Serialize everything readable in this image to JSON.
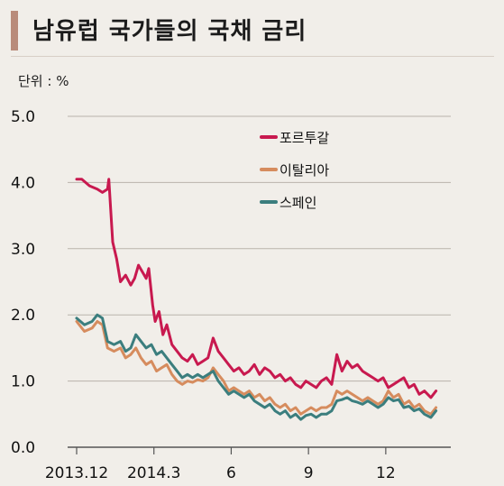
{
  "title": "남유럽 국가들의 국채 금리",
  "unit": "단위 : %",
  "chart_data": {
    "type": "line",
    "title": "남유럽 국가들의 국채 금리",
    "ylabel": "단위 : %",
    "ylim": [
      0,
      5
    ],
    "yticks": [
      "0.0",
      "1.0",
      "2.0",
      "3.0",
      "4.0",
      "5.0"
    ],
    "xticks": [
      "2013.12",
      "2014.3",
      "6",
      "9",
      "12"
    ],
    "xtick_pos": [
      0,
      3,
      6,
      9,
      12
    ],
    "xlim": [
      0,
      14
    ],
    "grid": true,
    "legend_position": "top-right",
    "series": [
      {
        "name": "포르투갈",
        "color": "#c8194f",
        "x": [
          0,
          0.2,
          0.5,
          0.8,
          1.0,
          1.2,
          1.25,
          1.4,
          1.55,
          1.7,
          1.9,
          2.1,
          2.25,
          2.4,
          2.55,
          2.7,
          2.8,
          2.95,
          3.05,
          3.2,
          3.35,
          3.5,
          3.7,
          3.9,
          4.1,
          4.3,
          4.5,
          4.7,
          4.9,
          5.1,
          5.3,
          5.5,
          5.7,
          5.9,
          6.1,
          6.3,
          6.5,
          6.7,
          6.9,
          7.1,
          7.3,
          7.5,
          7.7,
          7.9,
          8.1,
          8.3,
          8.5,
          8.7,
          8.9,
          9.1,
          9.3,
          9.5,
          9.7,
          9.9,
          10.1,
          10.3,
          10.5,
          10.7,
          10.9,
          11.1,
          11.3,
          11.5,
          11.7,
          11.9,
          12.1,
          12.3,
          12.5,
          12.7,
          12.9,
          13.1,
          13.3,
          13.5,
          13.75,
          13.95
        ],
        "values": [
          4.05,
          4.05,
          3.95,
          3.9,
          3.85,
          3.9,
          4.05,
          3.1,
          2.85,
          2.5,
          2.6,
          2.45,
          2.55,
          2.75,
          2.65,
          2.55,
          2.7,
          2.15,
          1.9,
          2.05,
          1.7,
          1.85,
          1.55,
          1.45,
          1.35,
          1.3,
          1.4,
          1.25,
          1.3,
          1.35,
          1.65,
          1.45,
          1.35,
          1.25,
          1.15,
          1.2,
          1.1,
          1.15,
          1.25,
          1.1,
          1.2,
          1.15,
          1.05,
          1.1,
          1.0,
          1.05,
          0.95,
          0.9,
          1.0,
          0.95,
          0.9,
          1.0,
          1.05,
          0.95,
          1.4,
          1.15,
          1.3,
          1.2,
          1.25,
          1.15,
          1.1,
          1.05,
          1.0,
          1.05,
          0.9,
          0.95,
          1.0,
          1.05,
          0.9,
          0.95,
          0.8,
          0.85,
          0.75,
          0.85
        ]
      },
      {
        "name": "이탈리아",
        "color": "#d68c5e",
        "x": [
          0,
          0.3,
          0.6,
          0.8,
          1.0,
          1.2,
          1.45,
          1.7,
          1.9,
          2.1,
          2.3,
          2.5,
          2.7,
          2.9,
          3.1,
          3.3,
          3.5,
          3.7,
          3.9,
          4.1,
          4.3,
          4.5,
          4.7,
          4.9,
          5.1,
          5.3,
          5.5,
          5.7,
          5.9,
          6.1,
          6.3,
          6.5,
          6.7,
          6.9,
          7.1,
          7.3,
          7.5,
          7.7,
          7.9,
          8.1,
          8.3,
          8.5,
          8.7,
          8.9,
          9.1,
          9.3,
          9.5,
          9.7,
          9.9,
          10.1,
          10.3,
          10.5,
          10.7,
          10.9,
          11.1,
          11.3,
          11.5,
          11.7,
          11.9,
          12.1,
          12.3,
          12.5,
          12.7,
          12.9,
          13.1,
          13.3,
          13.5,
          13.75,
          13.95
        ],
        "values": [
          1.9,
          1.75,
          1.8,
          1.9,
          1.85,
          1.5,
          1.45,
          1.5,
          1.35,
          1.4,
          1.5,
          1.35,
          1.25,
          1.3,
          1.15,
          1.2,
          1.25,
          1.1,
          1.0,
          0.95,
          1.0,
          0.98,
          1.02,
          1.0,
          1.05,
          1.2,
          1.1,
          1.0,
          0.85,
          0.9,
          0.85,
          0.8,
          0.85,
          0.75,
          0.8,
          0.7,
          0.75,
          0.65,
          0.6,
          0.65,
          0.55,
          0.6,
          0.5,
          0.55,
          0.6,
          0.55,
          0.6,
          0.6,
          0.65,
          0.85,
          0.8,
          0.85,
          0.8,
          0.75,
          0.7,
          0.75,
          0.7,
          0.65,
          0.7,
          0.85,
          0.75,
          0.8,
          0.65,
          0.7,
          0.6,
          0.65,
          0.55,
          0.5,
          0.6
        ]
      },
      {
        "name": "스페인",
        "color": "#3b7e7e",
        "x": [
          0,
          0.3,
          0.6,
          0.8,
          1.0,
          1.2,
          1.45,
          1.7,
          1.9,
          2.1,
          2.3,
          2.5,
          2.7,
          2.9,
          3.1,
          3.3,
          3.5,
          3.7,
          3.9,
          4.1,
          4.3,
          4.5,
          4.7,
          4.9,
          5.1,
          5.3,
          5.5,
          5.7,
          5.9,
          6.1,
          6.3,
          6.5,
          6.7,
          6.9,
          7.1,
          7.3,
          7.5,
          7.7,
          7.9,
          8.1,
          8.3,
          8.5,
          8.7,
          8.9,
          9.1,
          9.3,
          9.5,
          9.7,
          9.9,
          10.1,
          10.3,
          10.5,
          10.7,
          10.9,
          11.1,
          11.3,
          11.5,
          11.7,
          11.9,
          12.1,
          12.3,
          12.5,
          12.7,
          12.9,
          13.1,
          13.3,
          13.5,
          13.75,
          13.95
        ],
        "values": [
          1.95,
          1.85,
          1.9,
          2.0,
          1.95,
          1.6,
          1.55,
          1.6,
          1.45,
          1.5,
          1.7,
          1.6,
          1.5,
          1.55,
          1.4,
          1.45,
          1.35,
          1.25,
          1.15,
          1.05,
          1.1,
          1.05,
          1.1,
          1.05,
          1.1,
          1.15,
          1.0,
          0.9,
          0.8,
          0.85,
          0.8,
          0.75,
          0.8,
          0.7,
          0.65,
          0.6,
          0.65,
          0.55,
          0.5,
          0.55,
          0.45,
          0.5,
          0.42,
          0.48,
          0.5,
          0.45,
          0.5,
          0.5,
          0.55,
          0.7,
          0.72,
          0.75,
          0.7,
          0.68,
          0.65,
          0.7,
          0.65,
          0.6,
          0.65,
          0.75,
          0.7,
          0.72,
          0.6,
          0.62,
          0.55,
          0.58,
          0.5,
          0.45,
          0.55
        ]
      }
    ]
  }
}
